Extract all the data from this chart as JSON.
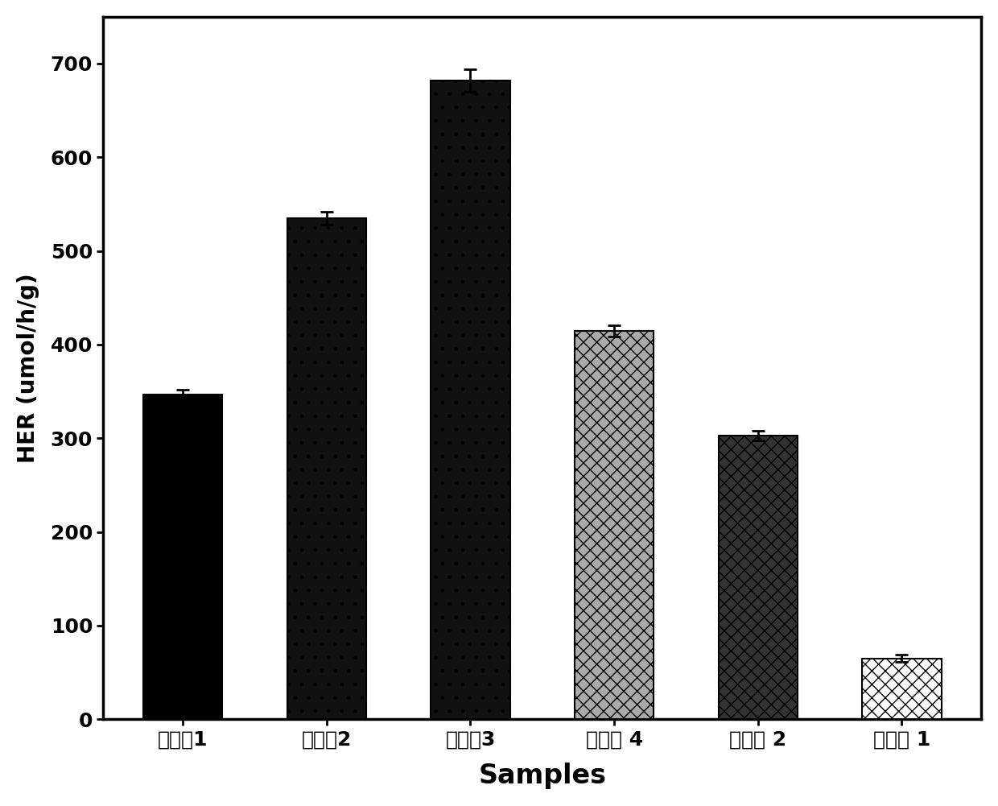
{
  "categories": [
    "实施天1",
    "实施天2",
    "实施天3",
    "实施例 4",
    "对比例 2",
    "对比例 1"
  ],
  "values": [
    347,
    535,
    682,
    415,
    303,
    65
  ],
  "errors": [
    5,
    7,
    12,
    6,
    5,
    4
  ],
  "face_colors": [
    "#000000",
    "#111111",
    "#111111",
    "#aaaaaa",
    "#333333",
    "#ffffff"
  ],
  "hatch_patterns": [
    "",
    ".",
    ".",
    "xx",
    "xx",
    "xx"
  ],
  "edge_colors": [
    "#000000",
    "#000000",
    "#000000",
    "#000000",
    "#000000",
    "#000000"
  ],
  "hatch_colors": [
    "#000000",
    "#ffffff",
    "#ffffff",
    "#000000",
    "#000000",
    "#000000"
  ],
  "ylabel": "HER (umol/h/g)",
  "xlabel": "Samples",
  "ylim": [
    0,
    750
  ],
  "yticks": [
    0,
    100,
    200,
    300,
    400,
    500,
    600,
    700
  ],
  "bar_width": 0.55,
  "background_color": "#ffffff",
  "font_name": "SimHei"
}
